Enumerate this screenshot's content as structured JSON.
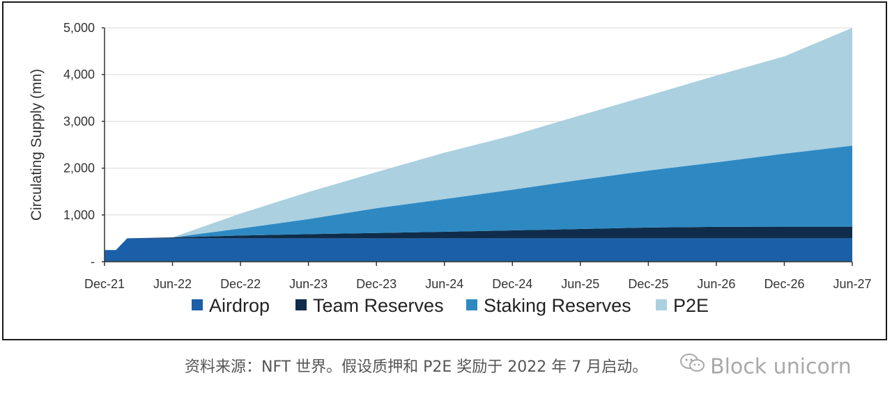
{
  "chart_data": {
    "type": "area",
    "stacked": true,
    "ylabel": "Circulating Supply (mn)",
    "xlabel": "",
    "ylim": [
      0,
      5000
    ],
    "yticks": [
      0,
      1000,
      2000,
      3000,
      4000,
      5000
    ],
    "ytick_labels": [
      "-",
      "1,000",
      "2,000",
      "3,000",
      "4,000",
      "5,000"
    ],
    "xticks": [
      "Dec-21",
      "Jun-22",
      "Dec-22",
      "Jun-23",
      "Dec-23",
      "Jun-24",
      "Dec-24",
      "Jun-25",
      "Dec-25",
      "Jun-26",
      "Dec-26",
      "Jun-27"
    ],
    "x": [
      "Dec-21",
      "Jan-22",
      "Feb-22",
      "Jun-22",
      "Dec-22",
      "Jun-23",
      "Dec-23",
      "Jun-24",
      "Dec-24",
      "Jun-25",
      "Dec-25",
      "Jun-26",
      "Dec-26",
      "Jun-27"
    ],
    "grid": "horizontal",
    "legend_position": "bottom",
    "series": [
      {
        "name": "Airdrop",
        "color": "#1B5FA8",
        "values": [
          250,
          250,
          500,
          500,
          500,
          500,
          500,
          500,
          500,
          500,
          500,
          500,
          500,
          500
        ]
      },
      {
        "name": "Team Reserves",
        "color": "#0F2D4A",
        "values": [
          0,
          0,
          0,
          20,
          60,
          90,
          115,
          140,
          170,
          200,
          230,
          245,
          250,
          250
        ]
      },
      {
        "name": "Staking Reserves",
        "color": "#2E89C2",
        "values": [
          0,
          0,
          0,
          0,
          150,
          320,
          530,
          700,
          870,
          1050,
          1220,
          1380,
          1560,
          1730
        ]
      },
      {
        "name": "P2E",
        "color": "#ABD0E0",
        "values": [
          0,
          0,
          0,
          0,
          320,
          580,
          770,
          990,
          1160,
          1380,
          1600,
          1855,
          2080,
          2520
        ]
      }
    ]
  },
  "caption": "资料来源：NFT 世界。假设质押和 P2E 奖励于 2022 年 7 月启动。",
  "watermark": {
    "icon": "wechat-icon",
    "text": "Block unicorn"
  }
}
